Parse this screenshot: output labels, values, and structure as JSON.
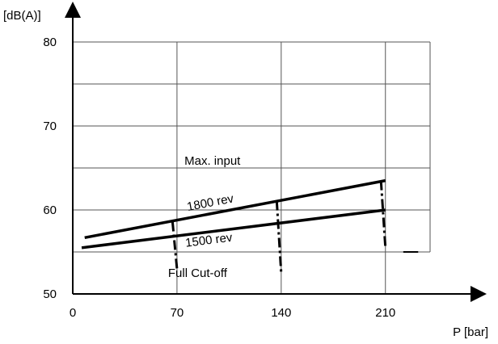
{
  "chart_data": {
    "type": "line",
    "xlabel": "P [bar]",
    "ylabel": "[dB(A)]",
    "xlim": [
      0,
      240
    ],
    "ylim": [
      50,
      80
    ],
    "x_ticks": [
      0,
      70,
      140,
      210
    ],
    "x_tick_labels": [
      "0",
      "70",
      "140",
      "210"
    ],
    "y_ticks": [
      50,
      60,
      70,
      80
    ],
    "y_tick_labels": [
      "50",
      "60",
      "70",
      "80"
    ],
    "grid": true,
    "series": [
      {
        "name": "1800 rev",
        "x": [
          8,
          210
        ],
        "y": [
          56.7,
          63.5
        ]
      },
      {
        "name": "1500 rev",
        "x": [
          6,
          210
        ],
        "y": [
          55.5,
          60.0
        ]
      }
    ],
    "drop_lines": [
      {
        "x": [
          67,
          70
        ],
        "y": [
          58.6,
          53.0
        ]
      },
      {
        "x": [
          137,
          140
        ],
        "y": [
          61.1,
          52.5
        ]
      },
      {
        "x": [
          207,
          210
        ],
        "y": [
          63.5,
          55.5
        ]
      }
    ],
    "annotations": [
      {
        "text": "Max. input",
        "x": 75,
        "y": 65.4
      },
      {
        "text": "Full Cut-off",
        "x": 64,
        "y": 52.0
      }
    ],
    "reference_line": {
      "x": [
        222,
        232
      ],
      "y": [
        55,
        55
      ]
    }
  }
}
